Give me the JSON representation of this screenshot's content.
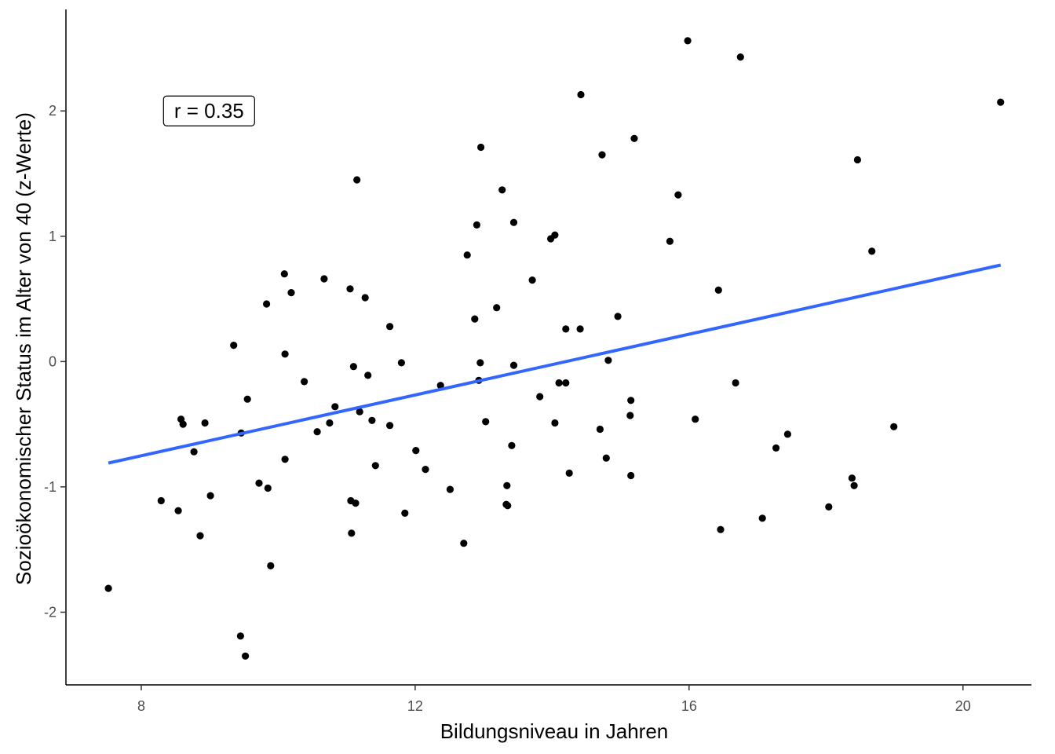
{
  "chart_data": {
    "type": "scatter",
    "title": "",
    "xlabel": "Bildungsniveau in Jahren",
    "ylabel": "Sozioökonomischer Status im Alter von 40 (z-Werte)",
    "xlim": [
      6.9,
      21.0
    ],
    "ylim": [
      -2.58,
      2.81
    ],
    "x_ticks": [
      8,
      12,
      16,
      20
    ],
    "y_ticks": [
      -2,
      -1,
      0,
      1,
      2
    ],
    "grid": false,
    "legend": "none",
    "point_color": "#000000",
    "line_color": "#3366ff",
    "annotation": {
      "label": "r = 0.35",
      "x": 8.99,
      "y": 2.0
    },
    "regression_line": {
      "x": [
        7.52,
        20.55
      ],
      "y": [
        -0.81,
        0.77
      ]
    },
    "points": [
      [
        7.52,
        -1.81
      ],
      [
        8.29,
        -1.11
      ],
      [
        8.54,
        -1.19
      ],
      [
        8.58,
        -0.46
      ],
      [
        8.61,
        -0.5
      ],
      [
        8.77,
        -0.72
      ],
      [
        8.86,
        -1.39
      ],
      [
        8.93,
        -0.49
      ],
      [
        9.01,
        -1.07
      ],
      [
        9.35,
        0.13
      ],
      [
        9.45,
        -2.19
      ],
      [
        9.46,
        -0.57
      ],
      [
        9.52,
        -2.35
      ],
      [
        9.55,
        -0.3
      ],
      [
        9.72,
        -0.97
      ],
      [
        9.83,
        0.46
      ],
      [
        9.85,
        -1.01
      ],
      [
        9.89,
        -1.63
      ],
      [
        10.09,
        0.7
      ],
      [
        10.1,
        -0.78
      ],
      [
        10.1,
        0.06
      ],
      [
        10.19,
        0.55
      ],
      [
        10.38,
        -0.16
      ],
      [
        10.57,
        -0.56
      ],
      [
        10.67,
        0.66
      ],
      [
        10.75,
        -0.49
      ],
      [
        10.83,
        -0.36
      ],
      [
        11.05,
        0.58
      ],
      [
        11.06,
        -1.11
      ],
      [
        11.07,
        -1.37
      ],
      [
        11.1,
        -0.04
      ],
      [
        11.13,
        -1.13
      ],
      [
        11.15,
        1.45
      ],
      [
        11.19,
        -0.4
      ],
      [
        11.27,
        0.51
      ],
      [
        11.31,
        -0.11
      ],
      [
        11.37,
        -0.47
      ],
      [
        11.42,
        -0.83
      ],
      [
        11.63,
        0.28
      ],
      [
        11.63,
        -0.51
      ],
      [
        11.8,
        -0.01
      ],
      [
        11.85,
        -1.21
      ],
      [
        12.01,
        -0.71
      ],
      [
        12.15,
        -0.86
      ],
      [
        12.37,
        -0.19
      ],
      [
        12.51,
        -1.02
      ],
      [
        12.71,
        -1.45
      ],
      [
        12.76,
        0.85
      ],
      [
        12.87,
        0.34
      ],
      [
        12.9,
        1.09
      ],
      [
        12.93,
        -0.15
      ],
      [
        12.95,
        -0.01
      ],
      [
        12.96,
        1.71
      ],
      [
        13.03,
        -0.48
      ],
      [
        13.19,
        0.43
      ],
      [
        13.27,
        1.37
      ],
      [
        13.33,
        -1.14
      ],
      [
        13.34,
        -0.99
      ],
      [
        13.35,
        -1.15
      ],
      [
        13.41,
        -0.67
      ],
      [
        13.44,
        -0.03
      ],
      [
        13.44,
        1.11
      ],
      [
        13.71,
        0.65
      ],
      [
        13.82,
        -0.28
      ],
      [
        13.98,
        0.98
      ],
      [
        14.04,
        1.01
      ],
      [
        14.04,
        -0.49
      ],
      [
        14.1,
        -0.17
      ],
      [
        14.2,
        -0.17
      ],
      [
        14.2,
        0.26
      ],
      [
        14.25,
        -0.89
      ],
      [
        14.41,
        0.26
      ],
      [
        14.42,
        2.13
      ],
      [
        14.7,
        -0.54
      ],
      [
        14.73,
        1.65
      ],
      [
        14.79,
        -0.77
      ],
      [
        14.82,
        0.01
      ],
      [
        14.96,
        0.36
      ],
      [
        15.14,
        -0.43
      ],
      [
        15.15,
        -0.31
      ],
      [
        15.15,
        -0.91
      ],
      [
        15.2,
        1.78
      ],
      [
        15.72,
        0.96
      ],
      [
        15.84,
        1.33
      ],
      [
        15.98,
        2.56
      ],
      [
        16.09,
        -0.46
      ],
      [
        16.43,
        0.57
      ],
      [
        16.46,
        -1.34
      ],
      [
        16.68,
        -0.17
      ],
      [
        16.75,
        2.43
      ],
      [
        17.07,
        -1.25
      ],
      [
        17.27,
        -0.69
      ],
      [
        17.44,
        -0.58
      ],
      [
        18.04,
        -1.16
      ],
      [
        18.38,
        -0.93
      ],
      [
        18.41,
        -0.99
      ],
      [
        18.46,
        1.61
      ],
      [
        18.67,
        0.88
      ],
      [
        18.99,
        -0.52
      ],
      [
        20.55,
        2.07
      ]
    ]
  }
}
